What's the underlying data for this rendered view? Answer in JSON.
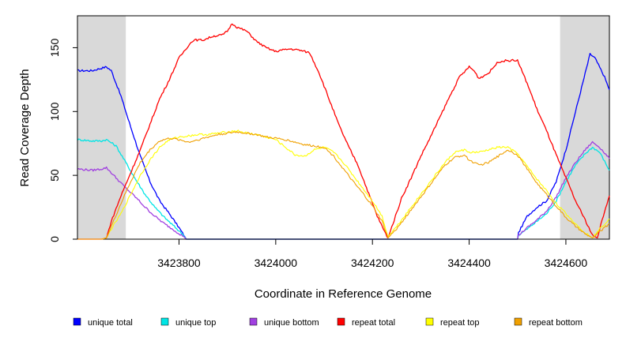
{
  "chart_data": {
    "type": "line",
    "xlabel": "Coordinate in Reference Genome",
    "ylabel": "Read Coverage Depth",
    "xlim": [
      3423590,
      3424690
    ],
    "ylim": [
      0,
      175
    ],
    "xticks": [
      3423800,
      3424000,
      3424200,
      3424400,
      3424600
    ],
    "xtick_labels": [
      "3423800",
      "3424000",
      "3424200",
      "3424400",
      "3424600"
    ],
    "yticks": [
      0,
      50,
      100,
      150
    ],
    "ytick_labels": [
      "0",
      "50",
      "100",
      "150"
    ],
    "shaded_regions": [
      {
        "x0": 3423590,
        "x1": 3423690,
        "color": "#d9d9d9"
      },
      {
        "x0": 3424588,
        "x1": 3424690,
        "color": "#d9d9d9"
      }
    ],
    "legend_position": "bottom",
    "series": [
      {
        "name": "unique total",
        "color": "#0000ff",
        "x": [
          3423590,
          3423620,
          3423630,
          3423650,
          3423660,
          3423680,
          3423700,
          3423720,
          3423740,
          3423760,
          3423780,
          3423800,
          3423812,
          3423815,
          3424240,
          3424500,
          3424502,
          3424520,
          3424540,
          3424560,
          3424580,
          3424600,
          3424620,
          3424640,
          3424650,
          3424660,
          3424680,
          3424690
        ],
        "y": [
          132,
          132,
          133,
          135,
          132,
          112,
          88,
          65,
          45,
          30,
          20,
          9,
          2,
          0,
          0,
          0,
          5,
          18,
          25,
          30,
          45,
          70,
          100,
          130,
          145,
          142,
          127,
          117
        ]
      },
      {
        "name": "unique top",
        "color": "#00e5e5",
        "x": [
          3423590,
          3423620,
          3423640,
          3423650,
          3423670,
          3423690,
          3423710,
          3423730,
          3423750,
          3423770,
          3423790,
          3423810,
          3423815,
          3424240,
          3424500,
          3424502,
          3424520,
          3424540,
          3424560,
          3424580,
          3424600,
          3424620,
          3424640,
          3424655,
          3424670,
          3424690
        ],
        "y": [
          78,
          77,
          77,
          78,
          73,
          60,
          47,
          35,
          25,
          17,
          10,
          3,
          0,
          0,
          0,
          3,
          8,
          14,
          20,
          30,
          45,
          58,
          67,
          72,
          68,
          54
        ]
      },
      {
        "name": "unique bottom",
        "color": "#a040e0",
        "x": [
          3423590,
          3423620,
          3423640,
          3423650,
          3423670,
          3423690,
          3423710,
          3423730,
          3423750,
          3423770,
          3423790,
          3423810,
          3423815,
          3424240,
          3424500,
          3424502,
          3424520,
          3424540,
          3424560,
          3424580,
          3424600,
          3424620,
          3424640,
          3424655,
          3424670,
          3424690
        ],
        "y": [
          55,
          54,
          55,
          56,
          48,
          40,
          33,
          25,
          18,
          12,
          7,
          2,
          0,
          0,
          0,
          3,
          9,
          15,
          22,
          33,
          48,
          60,
          70,
          76,
          72,
          63
        ]
      },
      {
        "name": "repeat total",
        "color": "#ff0000",
        "x": [
          3423590,
          3423640,
          3423650,
          3423660,
          3423680,
          3423700,
          3423720,
          3423740,
          3423760,
          3423780,
          3423800,
          3423820,
          3423830,
          3423850,
          3423870,
          3423890,
          3423900,
          3423910,
          3423920,
          3423940,
          3423960,
          3423980,
          3424000,
          3424010,
          3424030,
          3424050,
          3424070,
          3424090,
          3424110,
          3424130,
          3424150,
          3424170,
          3424190,
          3424210,
          3424225,
          3424232,
          3424245,
          3424260,
          3424280,
          3424300,
          3424320,
          3424340,
          3424360,
          3424380,
          3424400,
          3424410,
          3424420,
          3424440,
          3424460,
          3424480,
          3424500,
          3424520,
          3424540,
          3424560,
          3424580,
          3424600,
          3424620,
          3424640,
          3424655,
          3424665,
          3424680,
          3424690
        ],
        "y": [
          0,
          0,
          1,
          14,
          34,
          52,
          70,
          90,
          110,
          125,
          142,
          152,
          156,
          156,
          159,
          160,
          163,
          169,
          166,
          163,
          155,
          150,
          147,
          148,
          149,
          148,
          146,
          130,
          110,
          90,
          73,
          58,
          38,
          18,
          6,
          1,
          15,
          32,
          48,
          65,
          80,
          96,
          112,
          127,
          135,
          132,
          126,
          130,
          139,
          140,
          140,
          122,
          102,
          85,
          66,
          48,
          30,
          15,
          3,
          1,
          22,
          34
        ]
      },
      {
        "name": "repeat top",
        "color": "#ffff00",
        "x": [
          3423590,
          3423640,
          3423650,
          3423660,
          3423680,
          3423700,
          3423720,
          3423740,
          3423760,
          3423780,
          3423800,
          3423820,
          3423840,
          3423860,
          3423880,
          3423900,
          3423920,
          3423940,
          3423960,
          3423980,
          3424000,
          3424020,
          3424040,
          3424060,
          3424080,
          3424100,
          3424120,
          3424140,
          3424160,
          3424180,
          3424200,
          3424220,
          3424232,
          3424250,
          3424270,
          3424290,
          3424310,
          3424330,
          3424350,
          3424370,
          3424390,
          3424400,
          3424420,
          3424440,
          3424460,
          3424480,
          3424500,
          3424520,
          3424540,
          3424560,
          3424580,
          3424600,
          3424620,
          3424640,
          3424655,
          3424670,
          3424690
        ],
        "y": [
          0,
          0,
          1,
          8,
          20,
          35,
          50,
          62,
          72,
          78,
          80,
          81,
          82,
          82,
          83,
          84,
          85,
          83,
          82,
          80,
          78,
          72,
          66,
          65,
          70,
          72,
          68,
          60,
          50,
          40,
          30,
          18,
          2,
          10,
          20,
          30,
          40,
          50,
          60,
          68,
          70,
          68,
          68,
          70,
          72,
          72,
          67,
          57,
          47,
          38,
          28,
          20,
          12,
          5,
          1,
          8,
          16
        ]
      },
      {
        "name": "repeat bottom",
        "color": "#f0a000",
        "x": [
          3423590,
          3423640,
          3423650,
          3423660,
          3423680,
          3423700,
          3423720,
          3423740,
          3423760,
          3423780,
          3423800,
          3423820,
          3423840,
          3423860,
          3423880,
          3423900,
          3423920,
          3423940,
          3423960,
          3423980,
          3424000,
          3424020,
          3424040,
          3424060,
          3424080,
          3424100,
          3424120,
          3424140,
          3424160,
          3424180,
          3424200,
          3424220,
          3424232,
          3424250,
          3424270,
          3424290,
          3424310,
          3424330,
          3424350,
          3424370,
          3424390,
          3424400,
          3424420,
          3424440,
          3424460,
          3424480,
          3424500,
          3424520,
          3424540,
          3424560,
          3424580,
          3424600,
          3424620,
          3424640,
          3424655,
          3424670,
          3424690
        ],
        "y": [
          0,
          0,
          1,
          10,
          28,
          45,
          60,
          70,
          77,
          79,
          78,
          76,
          78,
          80,
          82,
          83,
          84,
          83,
          82,
          80,
          79,
          78,
          76,
          74,
          73,
          72,
          65,
          55,
          45,
          36,
          26,
          14,
          1,
          8,
          18,
          28,
          38,
          48,
          58,
          64,
          66,
          62,
          58,
          60,
          65,
          70,
          66,
          55,
          44,
          35,
          26,
          17,
          10,
          4,
          1,
          6,
          12
        ]
      }
    ]
  }
}
